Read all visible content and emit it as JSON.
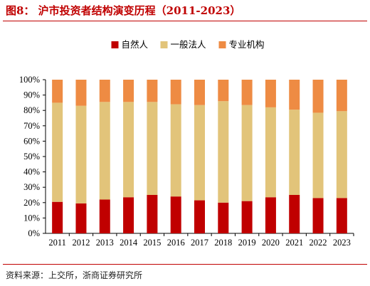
{
  "header": {
    "title": "图8： 沪市投资者结构演变历程（2011-2023）"
  },
  "footer": {
    "source": "资料来源：上交所，浙商证券研究所"
  },
  "colors": {
    "accent": "#c00000"
  },
  "chart_data": {
    "type": "bar",
    "stacked": true,
    "categories": [
      "2011",
      "2012",
      "2013",
      "2014",
      "2015",
      "2016",
      "2017",
      "2018",
      "2019",
      "2020",
      "2021",
      "2022",
      "2023"
    ],
    "series": [
      {
        "name": "自然人",
        "color": "#c00000",
        "values": [
          20.5,
          19.5,
          22,
          23.5,
          25,
          24,
          21.5,
          20,
          21,
          23.5,
          25,
          23,
          23
        ]
      },
      {
        "name": "一般法人",
        "color": "#e2c47a",
        "values": [
          64.5,
          63.5,
          63.5,
          62,
          60.5,
          60,
          62,
          66,
          62.5,
          58.5,
          55.5,
          55.5,
          56.5
        ]
      },
      {
        "name": "专业机构",
        "color": "#ee8b43",
        "values": [
          15,
          17,
          14.5,
          14.5,
          14.5,
          16,
          16.5,
          14,
          16.5,
          18,
          19.5,
          21.5,
          20.5
        ]
      }
    ],
    "ylim": [
      0,
      100
    ],
    "yticks": [
      "0%",
      "10%",
      "20%",
      "30%",
      "40%",
      "50%",
      "60%",
      "70%",
      "80%",
      "90%",
      "100%"
    ],
    "legend_position": "top-center",
    "grid": false
  }
}
